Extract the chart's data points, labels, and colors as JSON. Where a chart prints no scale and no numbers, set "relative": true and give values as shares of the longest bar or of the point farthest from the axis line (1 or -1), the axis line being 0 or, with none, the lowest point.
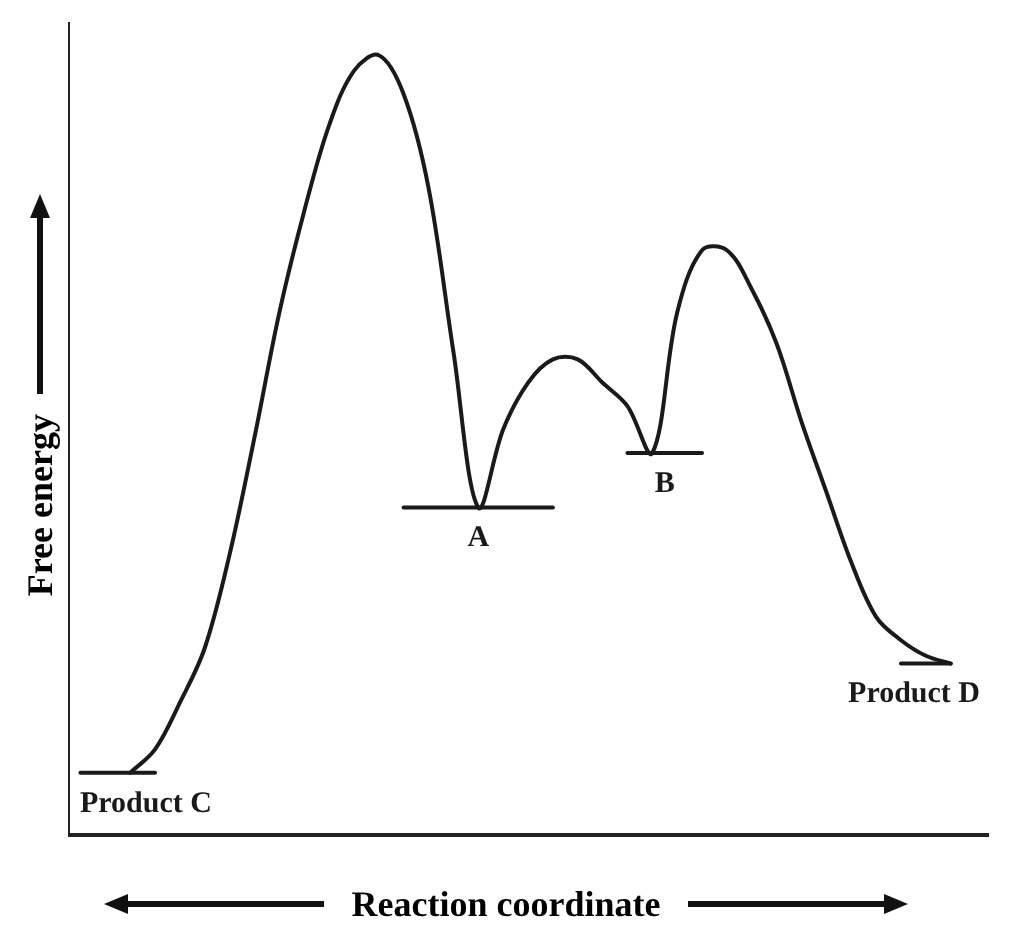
{
  "chart_data": {
    "type": "line",
    "relative": true,
    "xlabel": "Reaction coordinate",
    "ylabel": "Free energy",
    "marker": "none",
    "grid": false,
    "legend": false,
    "categories": [
      null,
      null,
      null,
      null,
      null,
      null,
      null,
      null,
      null,
      null,
      null,
      null,
      null,
      null,
      null,
      null,
      null,
      null,
      null,
      null,
      null,
      null,
      null,
      null,
      null,
      null,
      null,
      null,
      null,
      null,
      null,
      null,
      null,
      null,
      null,
      null,
      null
    ],
    "series": [
      {
        "color": "#1a1a1a",
        "values": [
          null,
          null,
          0.08,
          0.11,
          0.17,
          0.24,
          0.36,
          0.51,
          0.67,
          0.8,
          0.91,
          0.98,
          1.0,
          0.95,
          0.83,
          0.62,
          0.42,
          0.52,
          0.58,
          0.61,
          0.61,
          0.58,
          0.55,
          0.49,
          0.67,
          0.75,
          0.75,
          0.7,
          0.63,
          0.53,
          0.44,
          0.35,
          0.28,
          0.25,
          0.23,
          0.22,
          null
        ]
      },
      {
        "name": "Product C",
        "color": "#1a1a1a",
        "values": [
          0.08,
          0.08,
          0.08,
          0.08,
          null,
          null,
          null,
          null,
          null,
          null,
          null,
          null,
          null,
          null,
          null,
          null,
          null,
          null,
          null,
          null,
          null,
          null,
          null,
          null,
          null,
          null,
          null,
          null,
          null,
          null,
          null,
          null,
          null,
          null,
          null,
          null,
          null
        ]
      },
      {
        "name": "A",
        "color": "#1a1a1a",
        "values": [
          null,
          null,
          null,
          null,
          null,
          null,
          null,
          null,
          null,
          null,
          null,
          null,
          null,
          0.42,
          0.42,
          0.42,
          0.42,
          0.42,
          0.42,
          0.42,
          null,
          null,
          null,
          null,
          null,
          null,
          null,
          null,
          null,
          null,
          null,
          null,
          null,
          null,
          null,
          null,
          null
        ]
      },
      {
        "name": "B",
        "color": "#1a1a1a",
        "values": [
          null,
          null,
          null,
          null,
          null,
          null,
          null,
          null,
          null,
          null,
          null,
          null,
          null,
          null,
          null,
          null,
          null,
          null,
          null,
          null,
          null,
          null,
          0.49,
          0.49,
          0.49,
          0.49,
          null,
          null,
          null,
          null,
          null,
          null,
          null,
          null,
          null,
          null,
          null
        ]
      },
      {
        "name": "Product D",
        "color": "#1a1a1a",
        "values": [
          null,
          null,
          null,
          null,
          null,
          null,
          null,
          null,
          null,
          null,
          null,
          null,
          null,
          null,
          null,
          null,
          null,
          null,
          null,
          null,
          null,
          null,
          null,
          null,
          null,
          null,
          null,
          null,
          null,
          null,
          null,
          null,
          null,
          0.22,
          0.22,
          0.22,
          null
        ]
      }
    ]
  }
}
